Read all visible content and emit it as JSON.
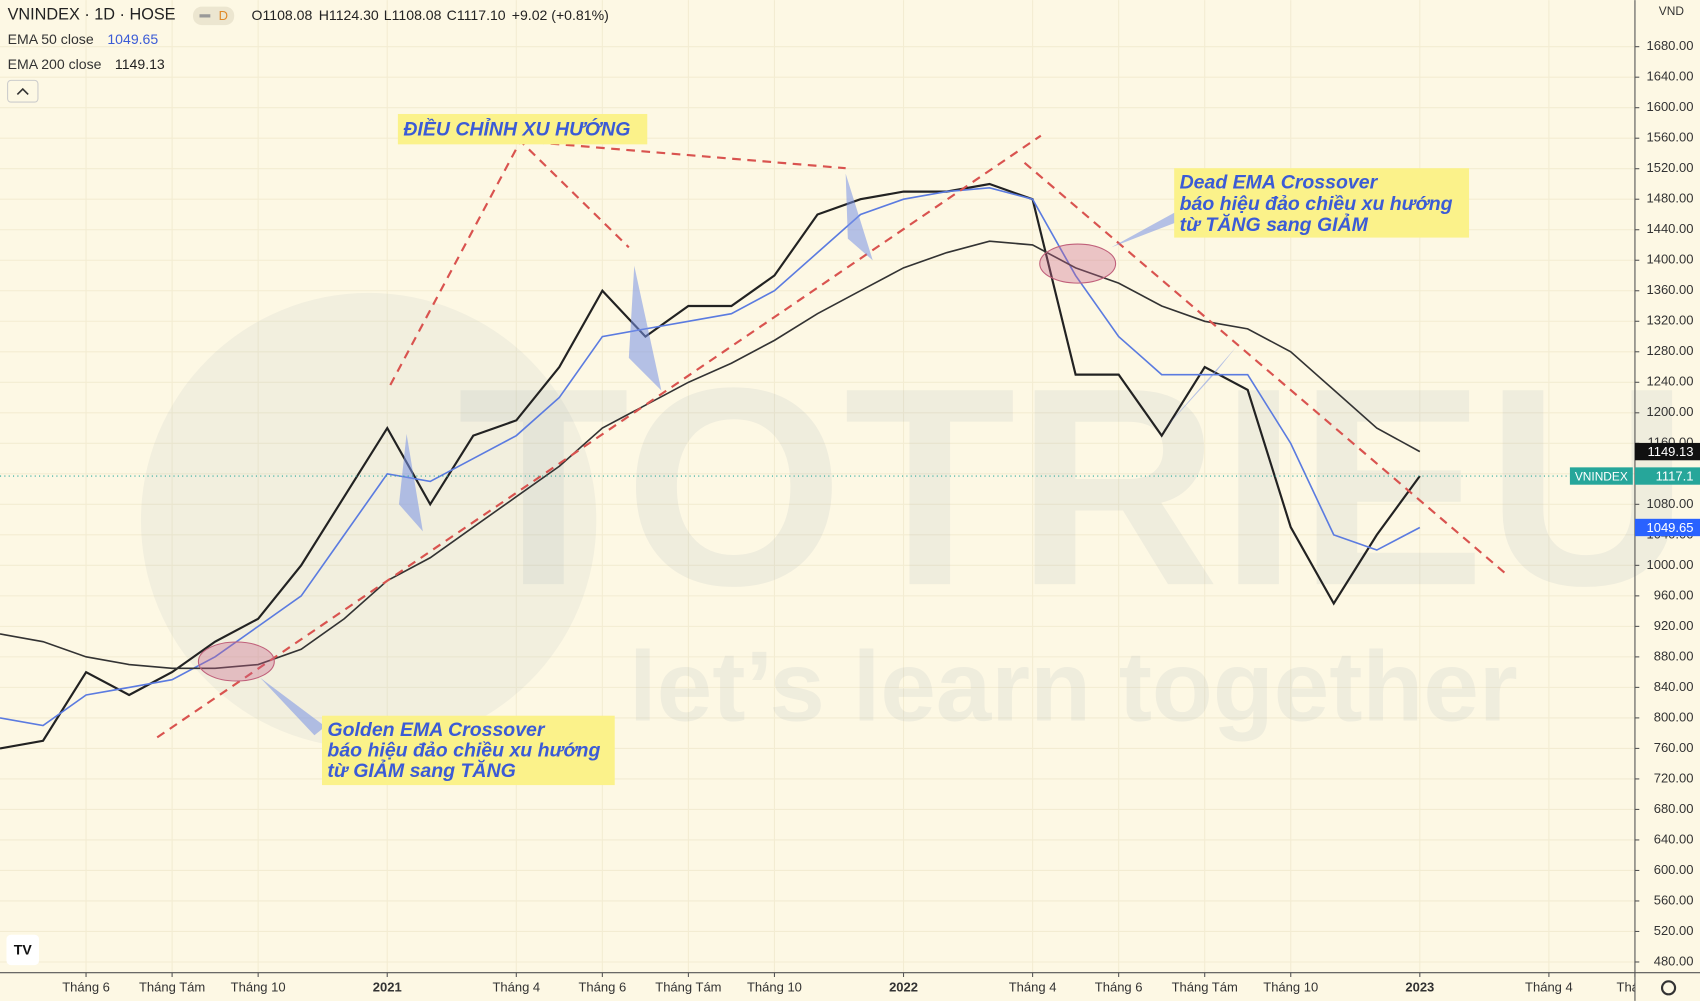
{
  "chart_data": {
    "type": "line",
    "title": "VNINDEX · 1D · HOSE",
    "interval_badge": "D",
    "header_values": [
      "O1108.08",
      "H1124.30",
      "L1108.08",
      "C1117.10",
      "+9.02 (+0.81%)"
    ],
    "currency": "VND",
    "x": [
      "2020-04",
      "2020-05",
      "2020-06",
      "2020-07",
      "2020-08",
      "2020-09",
      "2020-10",
      "2020-11",
      "2020-12",
      "2021-01",
      "2021-02",
      "2021-03",
      "2021-04",
      "2021-05",
      "2021-06",
      "2021-07",
      "2021-08",
      "2021-09",
      "2021-10",
      "2021-11",
      "2021-12",
      "2022-01",
      "2022-02",
      "2022-03",
      "2022-04",
      "2022-05",
      "2022-06",
      "2022-07",
      "2022-08",
      "2022-09",
      "2022-10",
      "2022-11",
      "2022-12",
      "2023-01"
    ],
    "series": [
      {
        "name": "VNINDEX",
        "color": "#222222",
        "values": [
          760,
          770,
          860,
          830,
          860,
          900,
          930,
          1000,
          1090,
          1180,
          1080,
          1170,
          1190,
          1260,
          1360,
          1300,
          1340,
          1340,
          1380,
          1460,
          1480,
          1490,
          1490,
          1500,
          1480,
          1250,
          1250,
          1170,
          1260,
          1230,
          1050,
          950,
          1040,
          1117.1
        ]
      },
      {
        "name": "EMA 50 close",
        "color": "#5b7be0",
        "values": [
          800,
          790,
          830,
          840,
          850,
          880,
          920,
          960,
          1040,
          1120,
          1110,
          1140,
          1170,
          1220,
          1300,
          1310,
          1320,
          1330,
          1360,
          1410,
          1460,
          1480,
          1490,
          1495,
          1480,
          1380,
          1300,
          1250,
          1250,
          1250,
          1160,
          1040,
          1020,
          1049.65
        ]
      },
      {
        "name": "EMA 200 close",
        "color": "#333333",
        "values": [
          910,
          900,
          880,
          870,
          865,
          865,
          870,
          890,
          930,
          980,
          1010,
          1050,
          1090,
          1130,
          1180,
          1210,
          1240,
          1265,
          1295,
          1330,
          1360,
          1390,
          1410,
          1425,
          1420,
          1390,
          1370,
          1340,
          1320,
          1310,
          1280,
          1230,
          1180,
          1149.13
        ]
      }
    ],
    "xlim": [
      "2020-04",
      "2023-06"
    ],
    "xticks": [
      {
        "value": "2020-06",
        "label": "Tháng 6"
      },
      {
        "value": "2020-08",
        "label": "Tháng Tám"
      },
      {
        "value": "2020-10",
        "label": "Tháng 10"
      },
      {
        "value": "2021-01",
        "label": "2021"
      },
      {
        "value": "2021-04",
        "label": "Tháng 4"
      },
      {
        "value": "2021-06",
        "label": "Tháng 6"
      },
      {
        "value": "2021-08",
        "label": "Tháng Tám"
      },
      {
        "value": "2021-10",
        "label": "Tháng 10"
      },
      {
        "value": "2022-01",
        "label": "2022"
      },
      {
        "value": "2022-04",
        "label": "Tháng 4"
      },
      {
        "value": "2022-06",
        "label": "Tháng 6"
      },
      {
        "value": "2022-08",
        "label": "Tháng Tám"
      },
      {
        "value": "2022-10",
        "label": "Tháng 10"
      },
      {
        "value": "2023-01",
        "label": "2023"
      },
      {
        "value": "2023-04",
        "label": "Tháng 4"
      },
      {
        "value": "2023-06",
        "label": "Tháng"
      }
    ],
    "ylim": [
      466,
      1741
    ],
    "yticks": [
      {
        "value": 480,
        "label": "480.00"
      },
      {
        "value": 520,
        "label": "520.00"
      },
      {
        "value": 560,
        "label": "560.00"
      },
      {
        "value": 600,
        "label": "600.00"
      },
      {
        "value": 640,
        "label": "640.00"
      },
      {
        "value": 680,
        "label": "680.00"
      },
      {
        "value": 720,
        "label": "720.00"
      },
      {
        "value": 760,
        "label": "760.00"
      },
      {
        "value": 800,
        "label": "800.00"
      },
      {
        "value": 840,
        "label": "840.00"
      },
      {
        "value": 880,
        "label": "880.00"
      },
      {
        "value": 920,
        "label": "920.00"
      },
      {
        "value": 960,
        "label": "960.00"
      },
      {
        "value": 1000,
        "label": "1000.00"
      },
      {
        "value": 1040,
        "label": "1040.00"
      },
      {
        "value": 1080,
        "label": "1080.00"
      },
      {
        "value": 1120,
        "label": "1120.00"
      },
      {
        "value": 1160,
        "label": "1160.00"
      },
      {
        "value": 1200,
        "label": "1200.00"
      },
      {
        "value": 1240,
        "label": "1240.00"
      },
      {
        "value": 1280,
        "label": "1280.00"
      },
      {
        "value": 1320,
        "label": "1320.00"
      },
      {
        "value": 1360,
        "label": "1360.00"
      },
      {
        "value": 1400,
        "label": "1400.00"
      },
      {
        "value": 1440,
        "label": "1440.00"
      },
      {
        "value": 1480,
        "label": "1480.00"
      },
      {
        "value": 1520,
        "label": "1520.00"
      },
      {
        "value": 1560,
        "label": "1560.00"
      },
      {
        "value": 1600,
        "label": "1600.00"
      },
      {
        "value": 1640,
        "label": "1640.00"
      },
      {
        "value": 1680,
        "label": "1680.00"
      }
    ],
    "grid": true,
    "annotations": {
      "trend": "ĐIỀU CHỈNH XU HƯỚNG",
      "dead": [
        "Dead EMA Crossover",
        "báo hiệu đảo chiều xu hướng",
        "từ TĂNG sang GIẢM"
      ],
      "golden": [
        "Golden EMA Crossover",
        "báo hiệu đảo chiều xu hướng",
        "từ GIẢM sang TĂNG"
      ]
    },
    "watermark": [
      "TOTRIEU",
      "let’s learn together"
    ]
  }
}
